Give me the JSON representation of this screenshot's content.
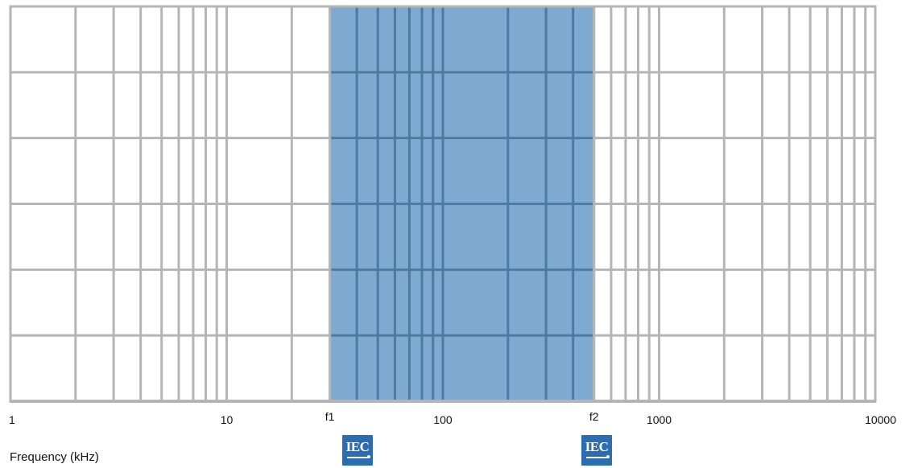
{
  "chart_data": {
    "type": "area",
    "title": "",
    "xlabel": "Frequency (kHz)",
    "ylabel": "",
    "x_scale": "log",
    "xlim": [
      1,
      10000
    ],
    "x_ticks": [
      {
        "value": 1,
        "label": "1"
      },
      {
        "value": 10,
        "label": "10"
      },
      {
        "value": 100,
        "label": "100"
      },
      {
        "value": 1000,
        "label": "1000"
      },
      {
        "value": 10000,
        "label": "10000"
      }
    ],
    "y_gridlines": 6,
    "grid": true,
    "shaded_band": {
      "x_start": 30,
      "x_end": 500,
      "color": "#7ea9d0"
    },
    "band_markers": [
      {
        "value": 30,
        "label": "f1"
      },
      {
        "value": 500,
        "label": "f2"
      }
    ]
  },
  "colors": {
    "grid": "#b5b5b5",
    "grid_in_band": "#4b7aa3",
    "band_fill": "#7ea9d0",
    "iec_logo": "#2a6db3"
  },
  "logos": [
    {
      "name": "iec-logo",
      "text": "IEC"
    },
    {
      "name": "iec-logo",
      "text": "IEC"
    }
  ]
}
